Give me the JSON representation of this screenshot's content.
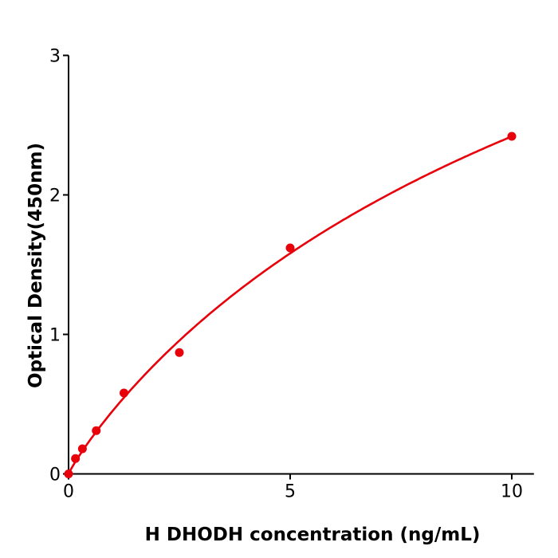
{
  "chart_data": {
    "type": "scatter",
    "title": "",
    "xlabel": "H  DHODH concentration (ng/mL)",
    "ylabel": "Optical Density(450nm)",
    "xlim": [
      0,
      10.5
    ],
    "ylim": [
      0,
      3
    ],
    "xticks": [
      0,
      5,
      10
    ],
    "yticks": [
      0,
      1,
      2,
      3
    ],
    "grid": false,
    "fit_curve": true,
    "color": "#e8000b",
    "series": [
      {
        "x": [
          0,
          0.156,
          0.3125,
          0.625,
          1.25,
          2.5,
          5,
          10
        ],
        "y": [
          0.0,
          0.11,
          0.18,
          0.31,
          0.58,
          0.87,
          1.62,
          2.42
        ]
      }
    ]
  }
}
